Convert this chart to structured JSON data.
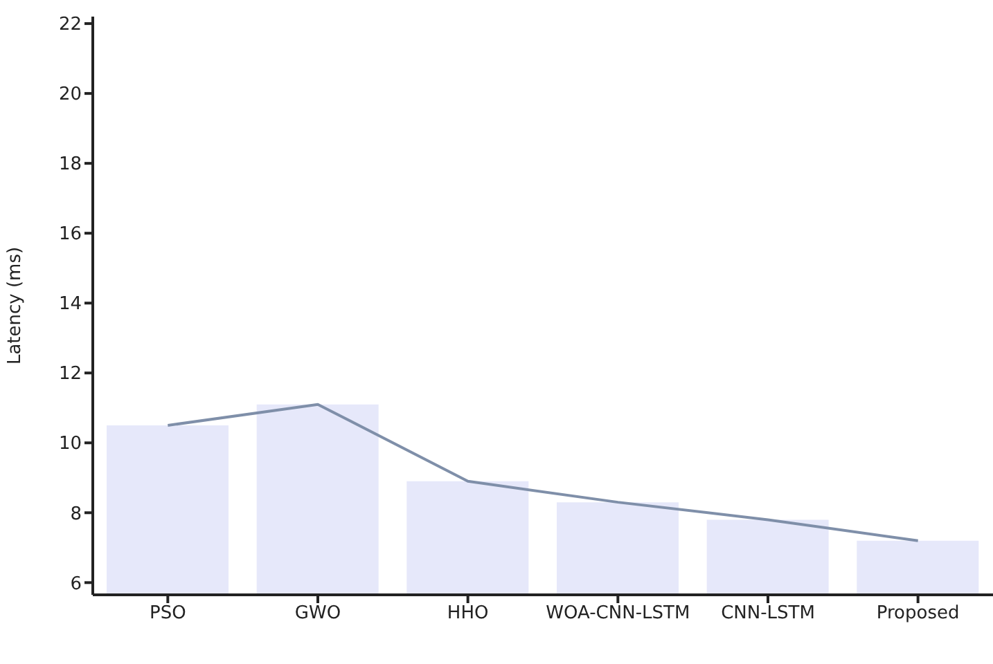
{
  "chart_data": {
    "type": "bar",
    "ylabel": "Latency (ms)",
    "categories": [
      "PSO",
      "GWO",
      "HHO",
      "WOA-CNN-LSTM",
      "CNN-LSTM",
      "Proposed"
    ],
    "series": [
      {
        "color": "#e6e8fa",
        "values": [
          10.5,
          11.1,
          8.9,
          8.3,
          7.8,
          7.2
        ]
      },
      {
        "type": "line",
        "color": "#7f8fa9",
        "values": [
          10.5,
          11.1,
          8.9,
          8.3,
          7.8,
          7.2
        ],
        "marker": "none"
      }
    ],
    "ylim": [
      5.65,
      22.2
    ],
    "yticks": [
      6,
      8,
      10,
      12,
      14,
      16,
      18,
      20,
      22
    ],
    "grid": false,
    "legend": false
  }
}
